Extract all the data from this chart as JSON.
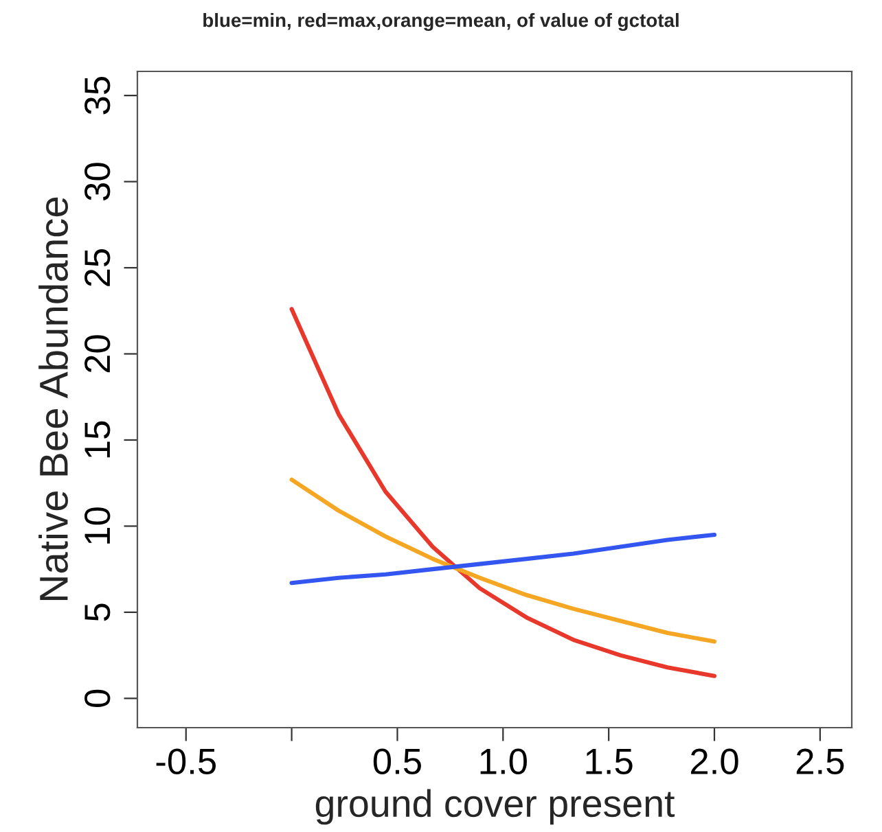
{
  "chart_data": {
    "type": "line",
    "title": "blue=min, red=max,orange=mean, of value of gctotal",
    "xlabel": "ground cover present",
    "ylabel": "Native Bee Abundance",
    "x": [
      0,
      0.222,
      0.444,
      0.667,
      0.889,
      1.111,
      1.333,
      1.556,
      1.778,
      2
    ],
    "series": [
      {
        "color": "#e8382b",
        "values": [
          22.6,
          16.5,
          12.0,
          8.8,
          6.4,
          4.7,
          3.4,
          2.5,
          1.8,
          1.3
        ]
      },
      {
        "color": "#f5a623",
        "values": [
          12.7,
          10.9,
          9.4,
          8.1,
          7.0,
          6.0,
          5.2,
          4.5,
          3.8,
          3.3
        ]
      },
      {
        "color": "#3355f0",
        "values": [
          6.7,
          7.0,
          7.2,
          7.5,
          7.8,
          8.1,
          8.4,
          8.8,
          9.2,
          9.5
        ]
      }
    ],
    "xlim": [
      -0.73,
      2.65
    ],
    "ylim": [
      -1.7,
      36.4
    ],
    "xticks": [
      -0.5,
      {
        "value": 0,
        "label": null
      },
      0.5,
      {
        "value": 1,
        "label": "1.0"
      },
      1.5,
      {
        "value": 2,
        "label": "2.0"
      },
      2.5
    ],
    "yticks": [
      0,
      5,
      10,
      15,
      20,
      25,
      30,
      35
    ],
    "grid": false,
    "legend": false,
    "marker": "none",
    "line_style": "solid"
  }
}
